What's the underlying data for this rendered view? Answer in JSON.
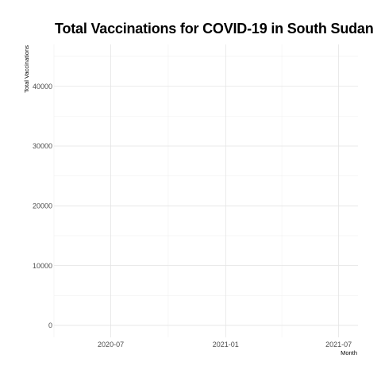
{
  "chart_data": {
    "type": "line",
    "title": "Total Vaccinations for COVID-19 in South Sudan",
    "xlabel": "Month",
    "ylabel": "Total Vaccinations",
    "xlim": [
      "2020-04-01",
      "2021-08-01"
    ],
    "ylim": [
      -2000,
      47000
    ],
    "x_ticks": [
      {
        "value": "2020-07-01",
        "label": "2020-07"
      },
      {
        "value": "2021-01-01",
        "label": "2021-01"
      },
      {
        "value": "2021-07-01",
        "label": "2021-07"
      }
    ],
    "x_minor_ticks": [
      "2020-04-01",
      "2020-10-01",
      "2021-04-01"
    ],
    "y_ticks": [
      0,
      10000,
      20000,
      30000,
      40000
    ],
    "y_minor_ticks": [
      5000,
      15000,
      25000,
      35000,
      45000
    ],
    "grid": true,
    "series": [
      {
        "values": []
      }
    ]
  }
}
